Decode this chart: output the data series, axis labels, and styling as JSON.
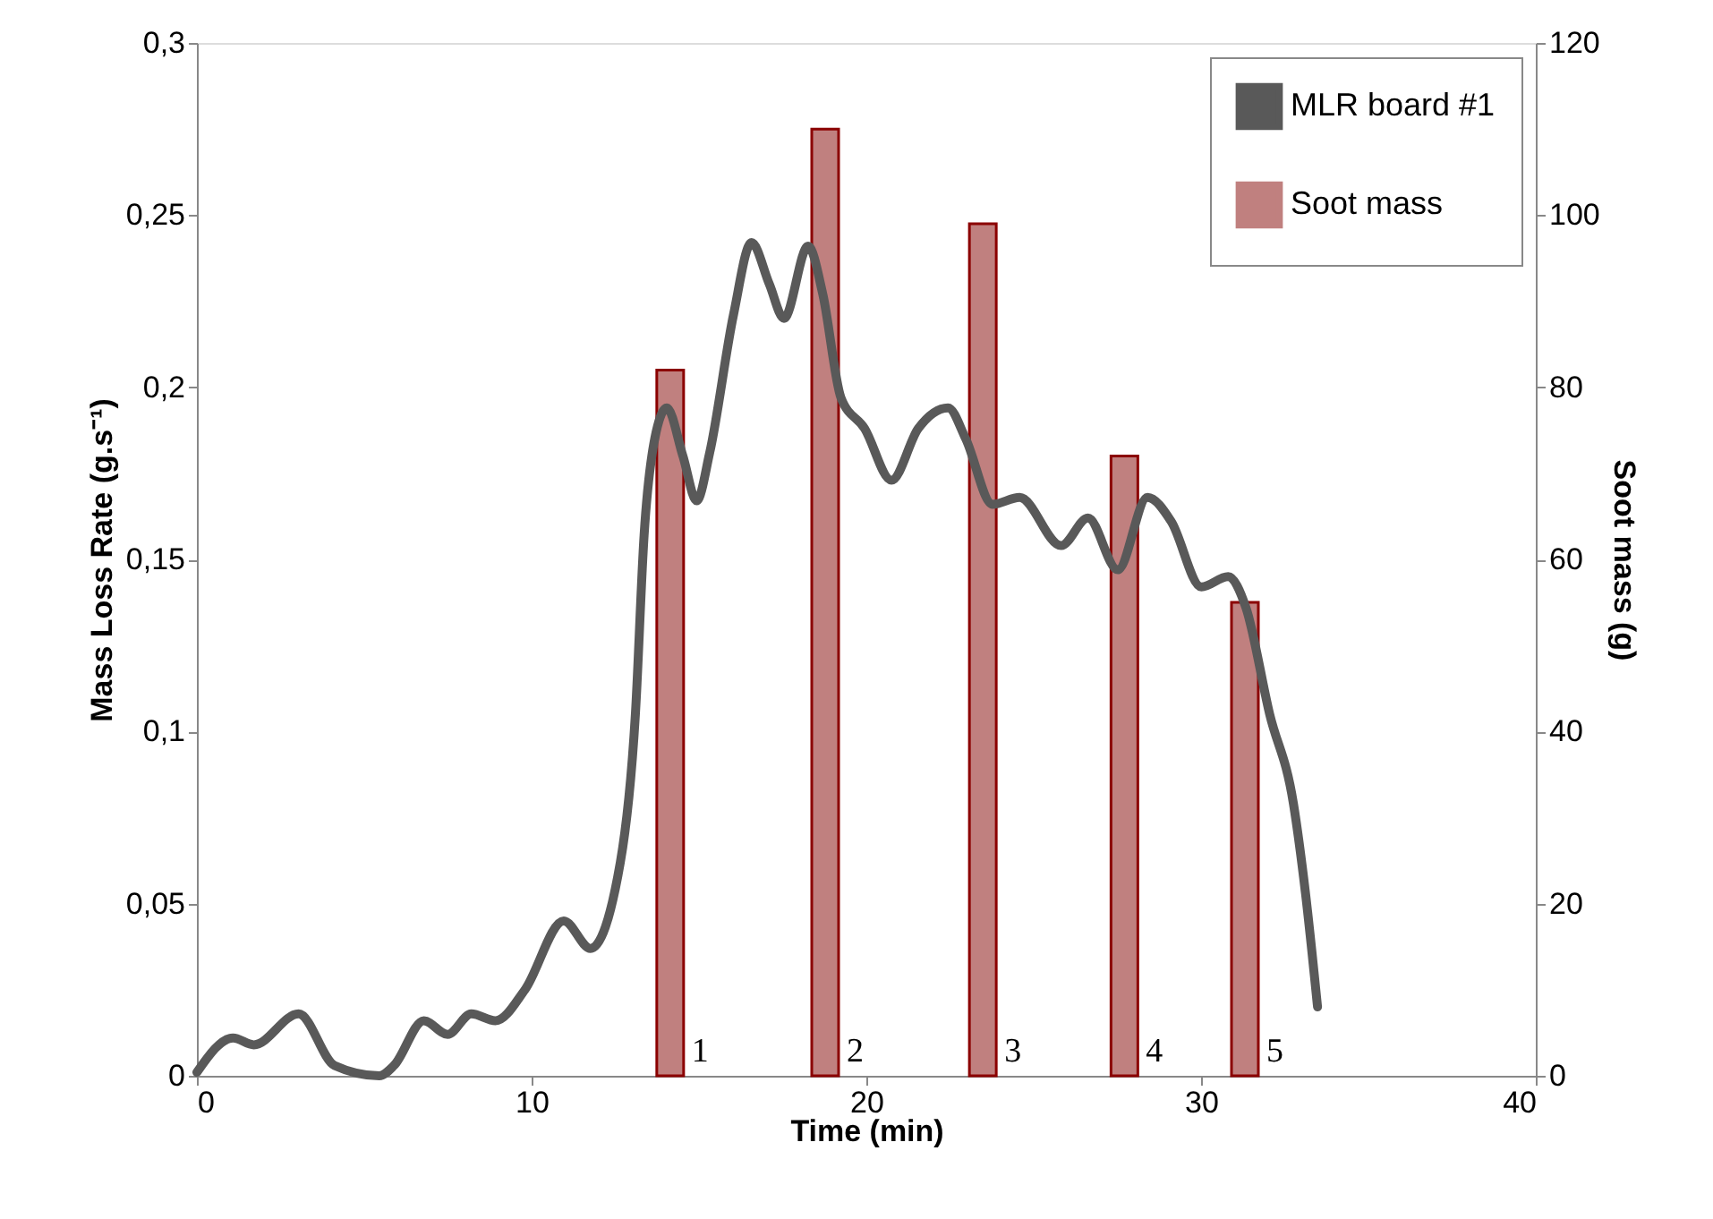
{
  "chart_data": {
    "type": "line",
    "xlabel": "Time (min)",
    "ylabel": "Mass Loss Rate (g.s⁻¹)",
    "y2label": "Soot mass (g)",
    "xlim": [
      0,
      40
    ],
    "xticks": [
      0,
      10,
      20,
      30,
      40
    ],
    "ylim": [
      0,
      0.3
    ],
    "yticks": [
      {
        "value": 0,
        "label": "0"
      },
      {
        "value": 0.05,
        "label": "0,05"
      },
      {
        "value": 0.1,
        "label": "0,1"
      },
      {
        "value": 0.15,
        "label": "0,15"
      },
      {
        "value": 0.2,
        "label": "0,2"
      },
      {
        "value": 0.25,
        "label": "0,25"
      },
      {
        "value": 0.3,
        "label": "0,3"
      }
    ],
    "y2lim": [
      0,
      120
    ],
    "y2ticks": [
      0,
      20,
      40,
      60,
      80,
      100,
      120
    ],
    "grid": false,
    "legend": "top right",
    "marker": "none",
    "line_style": "solid",
    "series": [
      {
        "name": "MLR board #1",
        "color": "#595959",
        "x": [
          0.0,
          1.08,
          1.7,
          3.04,
          4.11,
          5.45,
          5.89,
          6.78,
          7.49,
          8.2,
          8.92,
          9.8,
          10.96,
          11.76,
          12.65,
          13.1,
          13.36,
          13.72,
          14.04,
          14.52,
          14.93,
          15.32,
          16.03,
          16.57,
          17.1,
          17.54,
          18.26,
          18.7,
          19.24,
          19.95,
          20.75,
          21.55,
          22.44,
          22.97,
          23.77,
          24.58,
          25.82,
          26.62,
          27.51,
          28.4,
          29.11,
          30.01,
          30.81,
          31.34,
          32.05,
          32.76,
          33.12,
          33.48
        ],
        "values": [
          0.001,
          0.011,
          0.009,
          0.018,
          0.003,
          0.0,
          0.003,
          0.016,
          0.012,
          0.018,
          0.016,
          0.025,
          0.045,
          0.037,
          0.062,
          0.105,
          0.157,
          0.187,
          0.194,
          0.18,
          0.167,
          0.181,
          0.221,
          0.242,
          0.23,
          0.22,
          0.241,
          0.227,
          0.197,
          0.188,
          0.173,
          0.188,
          0.194,
          0.185,
          0.166,
          0.168,
          0.154,
          0.162,
          0.147,
          0.168,
          0.161,
          0.142,
          0.145,
          0.136,
          0.105,
          0.079,
          0.053,
          0.02
        ]
      },
      {
        "name": "Soot mass",
        "type": "bar",
        "axis": "y2",
        "color": "#c0807f",
        "x": [
          14.14,
          18.77,
          23.48,
          27.71,
          31.31
        ],
        "values": [
          82,
          110,
          99,
          72,
          55
        ]
      }
    ],
    "annotations": [
      "1",
      "2",
      "3",
      "4",
      "5"
    ]
  }
}
